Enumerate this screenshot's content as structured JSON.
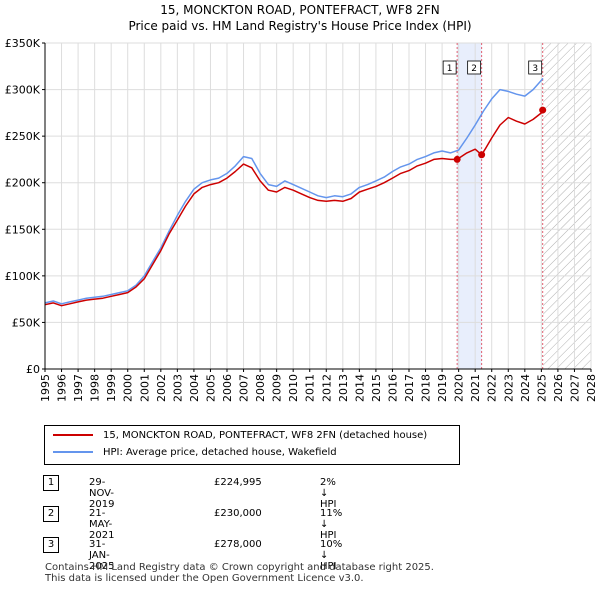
{
  "title_line1": "15, MONCKTON ROAD, PONTEFRACT, WF8 2FN",
  "title_line2": "Price paid vs. HM Land Registry's House Price Index (HPI)",
  "colors": {
    "property": "#cc0000",
    "hpi": "#6495ed",
    "marker_line": "#e06070",
    "shade": "#e8eefc"
  },
  "legend": {
    "property_label": "15, MONCKTON ROAD, PONTEFRACT, WF8 2FN (detached house)",
    "hpi_label": "HPI: Average price, detached house, Wakefield"
  },
  "transactions": [
    {
      "num": "1",
      "date": "29-NOV-2019",
      "price": "£224,995",
      "hpi": "2% ↓ HPI"
    },
    {
      "num": "2",
      "date": "21-MAY-2021",
      "price": "£230,000",
      "hpi": "11% ↓ HPI"
    },
    {
      "num": "3",
      "date": "31-JAN-2025",
      "price": "£278,000",
      "hpi": "10% ↓ HPI"
    }
  ],
  "footer_line1": "Contains HM Land Registry data © Crown copyright and database right 2025.",
  "footer_line2": "This data is licensed under the Open Government Licence v3.0.",
  "chart_data": {
    "type": "line",
    "title": "15, MONCKTON ROAD, PONTEFRACT, WF8 2FN",
    "subtitle": "Price paid vs. HM Land Registry's House Price Index (HPI)",
    "xlim": [
      1995,
      2028
    ],
    "ylim": [
      0,
      350000
    ],
    "y_ticks": [
      0,
      50000,
      100000,
      150000,
      200000,
      250000,
      300000,
      350000
    ],
    "y_tick_labels": [
      "£0",
      "£50K",
      "£100K",
      "£150K",
      "£200K",
      "£250K",
      "£300K",
      "£350K"
    ],
    "x_ticks": [
      1995,
      1996,
      1997,
      1998,
      1999,
      2000,
      2001,
      2002,
      2003,
      2004,
      2005,
      2006,
      2007,
      2008,
      2009,
      2010,
      2011,
      2012,
      2013,
      2014,
      2015,
      2016,
      2017,
      2018,
      2019,
      2020,
      2021,
      2022,
      2023,
      2024,
      2025,
      2026,
      2027,
      2028
    ],
    "grid": true,
    "future_hatch_from": 2025.1,
    "shaded_span": [
      2019.91,
      2021.39
    ],
    "series": [
      {
        "name": "HPI: Average price, detached house, Wakefield",
        "x": [
          1995,
          1995.5,
          1996,
          1996.5,
          1997,
          1997.5,
          1998,
          1998.5,
          1999,
          1999.5,
          2000,
          2000.5,
          2001,
          2001.5,
          2002,
          2002.5,
          2003,
          2003.5,
          2004,
          2004.5,
          2005,
          2005.5,
          2006,
          2006.5,
          2007,
          2007.5,
          2008,
          2008.5,
          2009,
          2009.5,
          2010,
          2010.5,
          2011,
          2011.5,
          2012,
          2012.5,
          2013,
          2013.5,
          2014,
          2014.5,
          2015,
          2015.5,
          2016,
          2016.5,
          2017,
          2017.5,
          2018,
          2018.5,
          2019,
          2019.5,
          2020,
          2020.5,
          2021,
          2021.5,
          2022,
          2022.5,
          2023,
          2023.5,
          2024,
          2024.5,
          2025,
          2025.1
        ],
        "values": [
          71000,
          73000,
          70000,
          72000,
          74000,
          76000,
          77000,
          78000,
          80000,
          82000,
          84000,
          90000,
          100000,
          115000,
          130000,
          148000,
          165000,
          180000,
          193000,
          200000,
          203000,
          205000,
          210000,
          218000,
          228000,
          226000,
          210000,
          198000,
          196000,
          202000,
          198000,
          194000,
          190000,
          186000,
          184000,
          186000,
          185000,
          188000,
          195000,
          198000,
          202000,
          206000,
          212000,
          217000,
          220000,
          225000,
          228000,
          232000,
          234000,
          232000,
          235000,
          248000,
          262000,
          277000,
          290000,
          300000,
          298000,
          295000,
          293000,
          300000,
          310000,
          312000
        ]
      },
      {
        "name": "15, MONCKTON ROAD, PONTEFRACT, WF8 2FN (detached house)",
        "x": [
          1995,
          1995.5,
          1996,
          1996.5,
          1997,
          1997.5,
          1998,
          1998.5,
          1999,
          1999.5,
          2000,
          2000.5,
          2001,
          2001.5,
          2002,
          2002.5,
          2003,
          2003.5,
          2004,
          2004.5,
          2005,
          2005.5,
          2006,
          2006.5,
          2007,
          2007.5,
          2008,
          2008.5,
          2009,
          2009.5,
          2010,
          2010.5,
          2011,
          2011.5,
          2012,
          2012.5,
          2013,
          2013.5,
          2014,
          2014.5,
          2015,
          2015.5,
          2016,
          2016.5,
          2017,
          2017.5,
          2018,
          2018.5,
          2019,
          2019.5,
          2019.91,
          2020.5,
          2021,
          2021.39,
          2021.6,
          2022,
          2022.5,
          2023,
          2023.5,
          2024,
          2024.5,
          2025,
          2025.08
        ],
        "values": [
          69000,
          71000,
          68000,
          70000,
          72000,
          74000,
          75000,
          76000,
          78000,
          80000,
          82000,
          88000,
          97000,
          112000,
          127000,
          145000,
          160000,
          175000,
          188000,
          195000,
          198000,
          200000,
          205000,
          212000,
          220000,
          216000,
          202000,
          192000,
          190000,
          195000,
          192000,
          188000,
          184000,
          181000,
          180000,
          181000,
          180000,
          183000,
          190000,
          193000,
          196000,
          200000,
          205000,
          210000,
          213000,
          218000,
          221000,
          225000,
          226000,
          225000,
          224995,
          232000,
          236000,
          230000,
          236000,
          248000,
          262000,
          270000,
          266000,
          263000,
          268000,
          275000,
          278000
        ]
      }
    ],
    "sales": [
      {
        "label": "1",
        "x": 2019.91,
        "y": 224995
      },
      {
        "label": "2",
        "x": 2021.39,
        "y": 230000
      },
      {
        "label": "3",
        "x": 2025.08,
        "y": 278000
      }
    ]
  }
}
